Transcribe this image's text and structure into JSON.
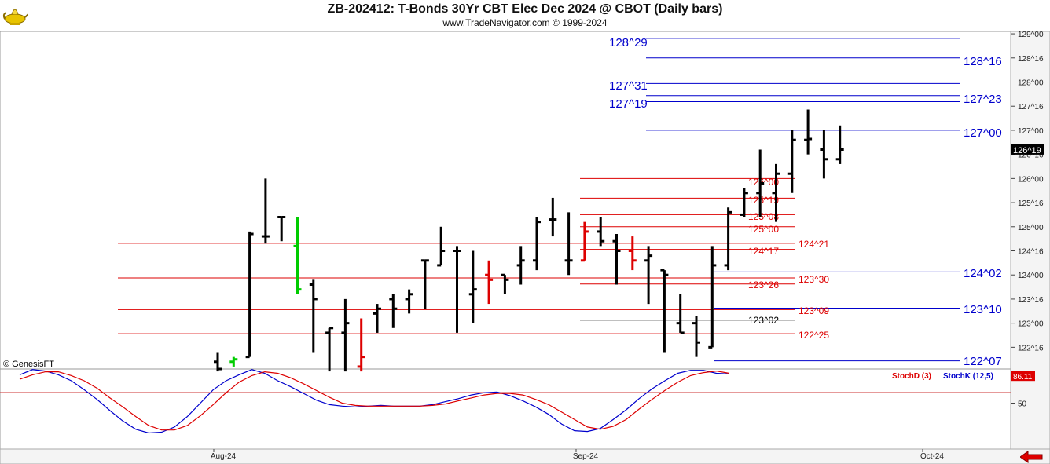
{
  "header": {
    "title": "ZB-202412:  T-Bonds 30Yr CBT Elec Dec 2024 @ CBOT  (Daily bars)",
    "subtitle": "www.TradeNavigator.com © 1999-2024"
  },
  "watermark": "© GenesisFT",
  "colors": {
    "blue": "#0000cc",
    "red": "#dd0000",
    "black": "#000000",
    "green": "#00cc00"
  },
  "icons": {
    "logo": "genie-lamp-icon",
    "nav": "back-arrow-icon"
  },
  "chart_data": [
    {
      "type": "ohlc",
      "title": "ZB-202412:  T-Bonds 30Yr CBT Elec Dec 2024 @ CBOT  (Daily bars)",
      "y_axis": {
        "unit": "32nds of a point",
        "ticks": [
          "122^16",
          "123^00",
          "123^16",
          "124^00",
          "124^16",
          "125^00",
          "125^16",
          "126^00",
          "126^16",
          "127^00",
          "127^16",
          "128^00",
          "128^16",
          "129^00"
        ],
        "tick_values": [
          122.5,
          123.0,
          123.5,
          124.0,
          124.5,
          125.0,
          125.5,
          126.0,
          126.5,
          127.0,
          127.5,
          128.0,
          128.5,
          129.0
        ],
        "range": [
          122.05,
          129.05
        ]
      },
      "current_price": {
        "label": "126^19",
        "value": 126.59375
      },
      "x_axis": {
        "labels": [
          "Aug-24",
          "Sep-24",
          "Oct-24"
        ]
      },
      "bars": [
        {
          "date": "2024-07-31",
          "h": 122.4,
          "l": 122.0,
          "o": 122.2,
          "c": 122.05,
          "color": "black"
        },
        {
          "date": "2024-08-01",
          "h": 122.3,
          "l": 122.1,
          "o": 122.2,
          "c": 122.25,
          "color": "green"
        },
        {
          "date": "2024-08-02",
          "h": 124.9,
          "l": 122.3,
          "o": 122.3,
          "c": 124.85,
          "color": "black"
        },
        {
          "date": "2024-08-05",
          "h": 126.0,
          "l": 124.65,
          "o": 124.8,
          "c": 124.8,
          "color": "black"
        },
        {
          "date": "2024-08-06",
          "h": 125.2,
          "l": 124.7,
          "o": 125.2,
          "c": 125.2,
          "color": "black"
        },
        {
          "date": "2024-08-07",
          "h": 125.2,
          "l": 123.6,
          "o": 124.6,
          "c": 123.7,
          "color": "green"
        },
        {
          "date": "2024-08-08",
          "h": 123.9,
          "l": 122.4,
          "o": 123.8,
          "c": 123.5,
          "color": "black"
        },
        {
          "date": "2024-08-09",
          "h": 122.9,
          "l": 122.0,
          "o": 122.8,
          "c": 122.9,
          "color": "black"
        },
        {
          "date": "2024-08-12",
          "h": 123.5,
          "l": 122.0,
          "o": 122.8,
          "c": 123.0,
          "color": "black"
        },
        {
          "date": "2024-08-13",
          "h": 123.1,
          "l": 122.0,
          "o": 122.1,
          "c": 122.3,
          "color": "red"
        },
        {
          "date": "2024-08-14",
          "h": 123.4,
          "l": 122.8,
          "o": 123.2,
          "c": 123.3,
          "color": "black"
        },
        {
          "date": "2024-08-15",
          "h": 123.6,
          "l": 122.9,
          "o": 123.5,
          "c": 123.3,
          "color": "black"
        },
        {
          "date": "2024-08-16",
          "h": 123.7,
          "l": 123.2,
          "o": 123.5,
          "c": 123.6,
          "color": "black"
        },
        {
          "date": "2024-08-19",
          "h": 124.3,
          "l": 123.3,
          "o": 124.3,
          "c": 124.3,
          "color": "black"
        },
        {
          "date": "2024-08-20",
          "h": 125.0,
          "l": 124.2,
          "o": 124.2,
          "c": 124.5,
          "color": "black"
        },
        {
          "date": "2024-08-21",
          "h": 124.6,
          "l": 122.8,
          "o": 124.5,
          "c": 124.5,
          "color": "black"
        },
        {
          "date": "2024-08-22",
          "h": 124.5,
          "l": 123.0,
          "o": 123.6,
          "c": 123.7,
          "color": "black"
        },
        {
          "date": "2024-08-23",
          "h": 124.3,
          "l": 123.4,
          "o": 124.0,
          "c": 123.9,
          "color": "red"
        },
        {
          "date": "2024-08-26",
          "h": 124.0,
          "l": 123.6,
          "o": 124.0,
          "c": 123.9,
          "color": "black"
        },
        {
          "date": "2024-08-27",
          "h": 124.6,
          "l": 123.8,
          "o": 124.2,
          "c": 124.3,
          "color": "black"
        },
        {
          "date": "2024-08-28",
          "h": 125.2,
          "l": 124.1,
          "o": 124.3,
          "c": 125.1,
          "color": "black"
        },
        {
          "date": "2024-08-29",
          "h": 125.6,
          "l": 124.8,
          "o": 125.15,
          "c": 125.15,
          "color": "black"
        },
        {
          "date": "2024-08-30",
          "h": 125.3,
          "l": 124.0,
          "o": 124.3,
          "c": 124.3,
          "color": "black"
        },
        {
          "date": "2024-09-03",
          "h": 125.1,
          "l": 124.3,
          "o": 124.3,
          "c": 124.9,
          "color": "red"
        },
        {
          "date": "2024-09-04",
          "h": 125.2,
          "l": 124.6,
          "o": 124.9,
          "c": 124.7,
          "color": "black"
        },
        {
          "date": "2024-09-05",
          "h": 124.85,
          "l": 123.8,
          "o": 124.7,
          "c": 124.5,
          "color": "black"
        },
        {
          "date": "2024-09-06",
          "h": 124.8,
          "l": 124.1,
          "o": 124.5,
          "c": 124.3,
          "color": "red"
        },
        {
          "date": "2024-09-09",
          "h": 124.6,
          "l": 123.4,
          "o": 124.3,
          "c": 124.4,
          "color": "black"
        },
        {
          "date": "2024-09-10",
          "h": 124.1,
          "l": 122.4,
          "o": 124.1,
          "c": 124.0,
          "color": "black"
        },
        {
          "date": "2024-09-11",
          "h": 123.6,
          "l": 122.8,
          "o": 123.0,
          "c": 122.8,
          "color": "black"
        },
        {
          "date": "2024-09-12",
          "h": 123.15,
          "l": 122.3,
          "o": 123.0,
          "c": 122.6,
          "color": "black"
        },
        {
          "date": "2024-09-13",
          "h": 124.6,
          "l": 122.5,
          "o": 122.5,
          "c": 124.2,
          "color": "black"
        },
        {
          "date": "2024-09-16",
          "h": 125.4,
          "l": 124.1,
          "o": 124.2,
          "c": 125.3,
          "color": "black"
        },
        {
          "date": "2024-09-17",
          "h": 125.8,
          "l": 125.2,
          "o": 125.25,
          "c": 125.7,
          "color": "black"
        },
        {
          "date": "2024-09-18",
          "h": 126.6,
          "l": 125.2,
          "o": 125.7,
          "c": 125.9,
          "color": "black"
        },
        {
          "date": "2024-09-19",
          "h": 126.3,
          "l": 125.1,
          "o": 125.7,
          "c": 126.1,
          "color": "black"
        },
        {
          "date": "2024-09-20",
          "h": 127.0,
          "l": 125.7,
          "o": 126.1,
          "c": 126.8,
          "color": "black"
        },
        {
          "date": "2024-09-23",
          "h": 127.43,
          "l": 126.5,
          "o": 126.8,
          "c": 126.82,
          "color": "black"
        },
        {
          "date": "2024-09-24",
          "h": 127.0,
          "l": 126.0,
          "o": 126.6,
          "c": 126.4,
          "color": "black"
        },
        {
          "date": "2024-09-25",
          "h": 127.1,
          "l": 126.3,
          "o": 126.4,
          "c": 126.6,
          "color": "black"
        }
      ],
      "levels": [
        {
          "label": "128^29",
          "value": 128.90625,
          "color": "blue"
        },
        {
          "label": "128^16",
          "value": 128.5,
          "color": "blue"
        },
        {
          "label": "127^31",
          "value": 127.96875,
          "color": "blue"
        },
        {
          "label": "127^23",
          "value": 127.71875,
          "color": "blue"
        },
        {
          "label": "127^19",
          "value": 127.59375,
          "color": "blue"
        },
        {
          "label": "127^00",
          "value": 127.0,
          "color": "blue"
        },
        {
          "label": "126^00",
          "value": 126.0,
          "color": "red"
        },
        {
          "label": "125^19",
          "value": 125.59375,
          "color": "red"
        },
        {
          "label": "125^08",
          "value": 125.25,
          "color": "red"
        },
        {
          "label": "125^00",
          "value": 125.0,
          "color": "red"
        },
        {
          "label": "124^21",
          "value": 124.65625,
          "color": "red"
        },
        {
          "label": "124^17",
          "value": 124.53125,
          "color": "red"
        },
        {
          "label": "124^02",
          "value": 124.0625,
          "color": "blue"
        },
        {
          "label": "123^30",
          "value": 123.9375,
          "color": "red"
        },
        {
          "label": "123^26",
          "value": 123.8125,
          "color": "red"
        },
        {
          "label": "123^10",
          "value": 123.3125,
          "color": "blue"
        },
        {
          "label": "123^09",
          "value": 123.28125,
          "color": "red"
        },
        {
          "label": "123^02",
          "value": 123.0625,
          "color": "black"
        },
        {
          "label": "122^25",
          "value": 122.78125,
          "color": "red"
        },
        {
          "label": "122^07",
          "value": 122.21875,
          "color": "blue"
        }
      ]
    },
    {
      "type": "line",
      "legend": [
        "StochD (3)",
        "StochK (12,5)"
      ],
      "y_axis": {
        "ticks": [
          "50"
        ],
        "tick_values": [
          50
        ],
        "range": [
          0,
          100
        ]
      },
      "current_value": {
        "label": "86.11",
        "value": 86.11
      },
      "series": [
        {
          "name": "StochK (12,5)",
          "color": "blue",
          "values": [
            88,
            95,
            93,
            88,
            80,
            68,
            55,
            40,
            26,
            15,
            10,
            11,
            18,
            32,
            50,
            68,
            80,
            88,
            95,
            90,
            80,
            72,
            63,
            54,
            48,
            46,
            45,
            46,
            47,
            46,
            46,
            46,
            48,
            52,
            56,
            61,
            64,
            65,
            60,
            53,
            45,
            35,
            22,
            13,
            12,
            16,
            28,
            41,
            56,
            69,
            80,
            90,
            94,
            94,
            90,
            89
          ]
        },
        {
          "name": "StochD (3)",
          "color": "red",
          "values": [
            82,
            88,
            92,
            92,
            87,
            80,
            70,
            57,
            45,
            32,
            20,
            14,
            14,
            20,
            33,
            48,
            64,
            78,
            87,
            92,
            90,
            84,
            76,
            67,
            58,
            50,
            47,
            46,
            46,
            46,
            46,
            46,
            47,
            49,
            53,
            57,
            61,
            63,
            63,
            61,
            55,
            48,
            38,
            28,
            18,
            15,
            19,
            28,
            42,
            55,
            67,
            78,
            87,
            91,
            93,
            90
          ]
        }
      ]
    }
  ]
}
